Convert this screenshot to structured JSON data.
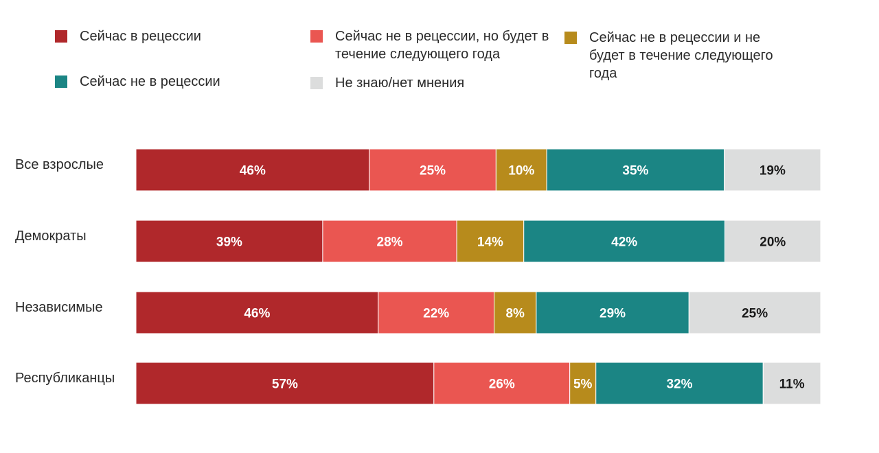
{
  "chart_data": {
    "type": "bar",
    "orientation": "horizontal",
    "stacked": true,
    "categories": [
      "Все взрослые",
      "Демократы",
      "Независимые",
      "Республиканцы"
    ],
    "series": [
      {
        "name": "Сейчас в рецессии",
        "color": "#b0282b",
        "values": [
          46,
          39,
          46,
          57
        ],
        "labels": [
          "46%",
          "39%",
          "46%",
          "57%"
        ]
      },
      {
        "name": "Сейчас не в рецессии, но будет в течение следующего года",
        "color": "#ea5651",
        "values": [
          25,
          28,
          22,
          26
        ],
        "labels": [
          "25%",
          "28%",
          "22%",
          "26%"
        ]
      },
      {
        "name": "Сейчас не в рецессии и не будет в течение следующего года",
        "color": "#b78b1c",
        "values": [
          10,
          14,
          8,
          5
        ],
        "labels": [
          "10%",
          "14%",
          "8%",
          "5%"
        ]
      },
      {
        "name": "Сейчас не в рецессии",
        "color": "#1b8584",
        "values": [
          35,
          42,
          29,
          32
        ],
        "labels": [
          "35%",
          "42%",
          "29%",
          "32%"
        ]
      },
      {
        "name": "Не знаю/нет мнения",
        "color": "#dcdddd",
        "values": [
          19,
          20,
          25,
          11
        ],
        "labels": [
          "19%",
          "20%",
          "25%",
          "11%"
        ]
      }
    ],
    "legend_position": "top",
    "grid": false
  },
  "legend": {
    "items": [
      {
        "label": "Сейчас в рецессии",
        "color": "#b0282b"
      },
      {
        "label": "Сейчас не в рецессии, но будет в течение следующего года",
        "color": "#ea5651"
      },
      {
        "label": "Сейчас не в рецессии и не будет в течение следующего года",
        "color": "#b78b1c"
      },
      {
        "label": "Сейчас не в рецессии",
        "color": "#1b8584"
      },
      {
        "label": "Не знаю/нет мнения",
        "color": "#dcdddd"
      }
    ]
  }
}
